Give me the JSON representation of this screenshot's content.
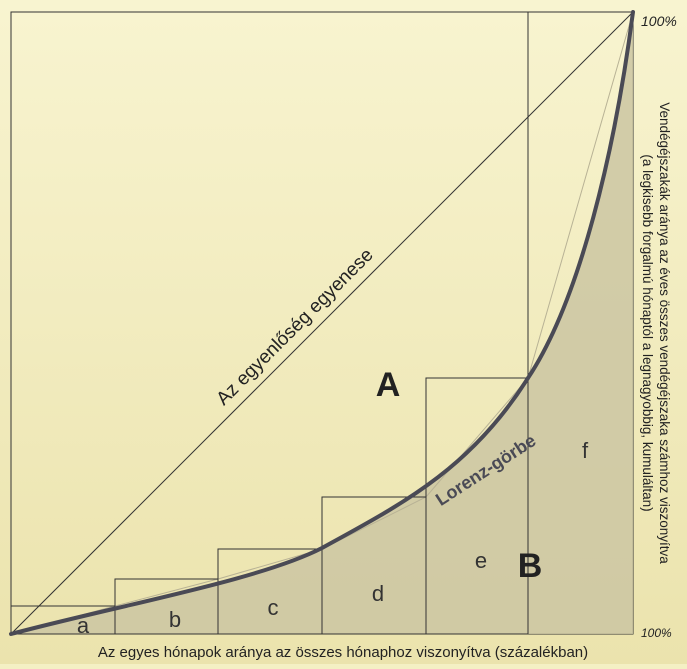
{
  "labels": {
    "top_right": "100%",
    "bottom_right": "100%",
    "equality_line": "Az egyenlőség egyenese",
    "lorenz_curve": "Lorenz-görbe",
    "area_A": "A",
    "area_B": "B",
    "x_axis": "Az egyes hónapok aránya az összes hónaphoz viszonyítva (százalékban)",
    "y_axis_line1": "Vendégéjszakák aránya az éves összes vendégéjszaka számhoz viszonyítva",
    "y_axis_line2": "(a legkisebb forgalmú hónaptól a legnagyobbig, kumuláltan)"
  },
  "segments": [
    "a",
    "b",
    "c",
    "d",
    "e",
    "f"
  ],
  "colors": {
    "background_top": "#f6f2cc",
    "background_bottom": "#ece4b0",
    "shaded_area": "#c9c3a0",
    "lorenz": "#4a4a55",
    "text": "#222222"
  }
}
